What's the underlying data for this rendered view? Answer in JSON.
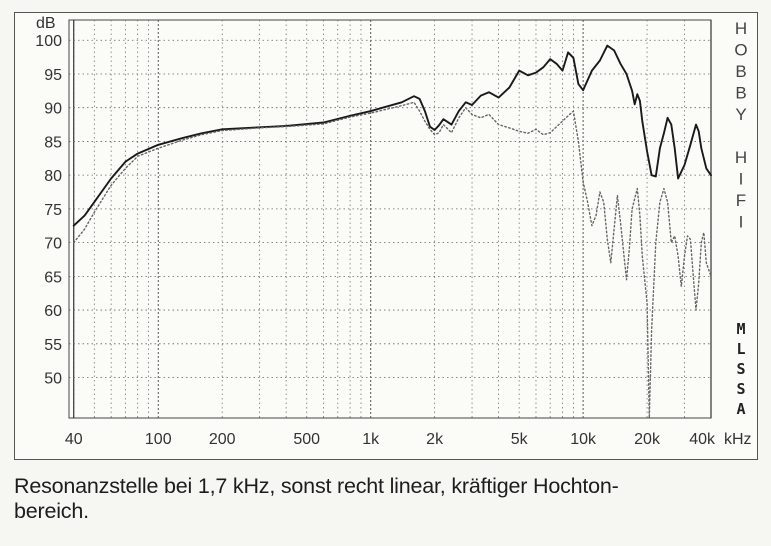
{
  "chart_data": {
    "type": "line",
    "title": "",
    "xlabel": "kHz",
    "ylabel": "dB",
    "x_scale": "log",
    "xlim": [
      38,
      40000
    ],
    "ylim": [
      44,
      103
    ],
    "x_ticks": [
      {
        "value": 40,
        "label": "40"
      },
      {
        "value": 100,
        "label": "100"
      },
      {
        "value": 200,
        "label": "200"
      },
      {
        "value": 500,
        "label": "500"
      },
      {
        "value": 1000,
        "label": "1k"
      },
      {
        "value": 2000,
        "label": "2k"
      },
      {
        "value": 5000,
        "label": "5k"
      },
      {
        "value": 10000,
        "label": "10k"
      },
      {
        "value": 20000,
        "label": "20k"
      },
      {
        "value": 40000,
        "label": "40k"
      }
    ],
    "y_ticks": [
      50,
      55,
      60,
      65,
      70,
      75,
      80,
      85,
      90,
      95,
      100
    ],
    "grid": true,
    "side_label_top": [
      "H",
      "O",
      "B",
      "B",
      "Y",
      "",
      "H",
      "I",
      "F",
      "I"
    ],
    "side_label_bottom": [
      "M",
      "L",
      "S",
      "S",
      "A"
    ],
    "series": [
      {
        "style": "solid",
        "color": "#1a1a1a",
        "x": [
          40,
          45,
          50,
          60,
          70,
          80,
          100,
          130,
          160,
          200,
          300,
          400,
          600,
          800,
          1000,
          1200,
          1400,
          1600,
          1700,
          1800,
          1900,
          2000,
          2100,
          2200,
          2400,
          2600,
          2800,
          3000,
          3300,
          3600,
          4000,
          4500,
          5000,
          5500,
          6000,
          6500,
          7000,
          7500,
          8000,
          8500,
          9000,
          9500,
          10000,
          11000,
          12000,
          13000,
          14000,
          15000,
          16000,
          17000,
          17500,
          18000,
          18500,
          19000,
          20000,
          21000,
          22000,
          23000,
          24000,
          25000,
          26000,
          27000,
          28000,
          30000,
          32000,
          34000,
          35000,
          36000,
          38000,
          40000
        ],
        "y": [
          72.5,
          74,
          76,
          79.5,
          82,
          83.2,
          84.5,
          85.5,
          86.2,
          86.8,
          87.1,
          87.3,
          87.8,
          88.8,
          89.5,
          90.2,
          90.8,
          91.7,
          91.3,
          89.5,
          87.2,
          86.7,
          87.4,
          88.3,
          87.5,
          89.5,
          90.8,
          90.4,
          91.8,
          92.3,
          91.5,
          93,
          95.5,
          94.8,
          95.2,
          96,
          97.2,
          96.5,
          95.5,
          98.2,
          97.4,
          93.5,
          92.6,
          95.5,
          97,
          99.2,
          98.5,
          96.5,
          95,
          92.5,
          90.5,
          92,
          91,
          88,
          83.5,
          80,
          79.8,
          84,
          86.2,
          88.5,
          87.5,
          84,
          79.5,
          81.5,
          84.5,
          87.5,
          86.5,
          84,
          81,
          80
        ]
      },
      {
        "style": "dotted",
        "color": "#666666",
        "x": [
          40,
          45,
          50,
          60,
          70,
          80,
          100,
          130,
          160,
          200,
          300,
          400,
          600,
          800,
          1000,
          1200,
          1400,
          1600,
          1700,
          1800,
          1900,
          2000,
          2100,
          2200,
          2400,
          2600,
          2800,
          3000,
          3300,
          3600,
          4000,
          4500,
          5000,
          5500,
          6000,
          6500,
          7000,
          8000,
          8500,
          9000,
          9500,
          10000,
          10500,
          11000,
          11500,
          12000,
          12500,
          13000,
          13500,
          14000,
          14500,
          15000,
          16000,
          16500,
          17000,
          18000,
          18500,
          19000,
          20000,
          20500,
          21000,
          22000,
          23000,
          24000,
          25000,
          26000,
          27000,
          28000,
          29000,
          30000,
          31000,
          32000,
          33000,
          34000,
          35000,
          36000,
          37000,
          38000,
          40000
        ],
        "y": [
          70,
          72,
          74.5,
          78.5,
          81,
          82.8,
          84,
          85.2,
          86,
          86.6,
          87,
          87.2,
          87.6,
          88.6,
          89.2,
          89.8,
          90.3,
          90.8,
          89.5,
          88,
          86.8,
          86,
          86.3,
          87.5,
          86.3,
          88.5,
          90,
          89,
          88.5,
          89,
          87.5,
          87,
          86.5,
          86.2,
          86.8,
          86,
          86.3,
          88,
          88.8,
          89.5,
          85,
          79,
          76,
          72.5,
          74,
          77.5,
          76,
          70.5,
          67,
          72,
          77,
          73,
          64.5,
          69,
          75,
          78,
          74,
          68,
          61,
          44,
          57,
          70,
          76,
          78,
          76,
          70,
          71,
          68,
          63.5,
          68,
          71,
          70.5,
          65,
          60,
          64,
          70,
          71.5,
          67,
          65
        ]
      }
    ]
  },
  "caption": "Resonanzstelle bei 1,7 kHz, sonst recht linear, kräftiger Hochton-\nbereich."
}
